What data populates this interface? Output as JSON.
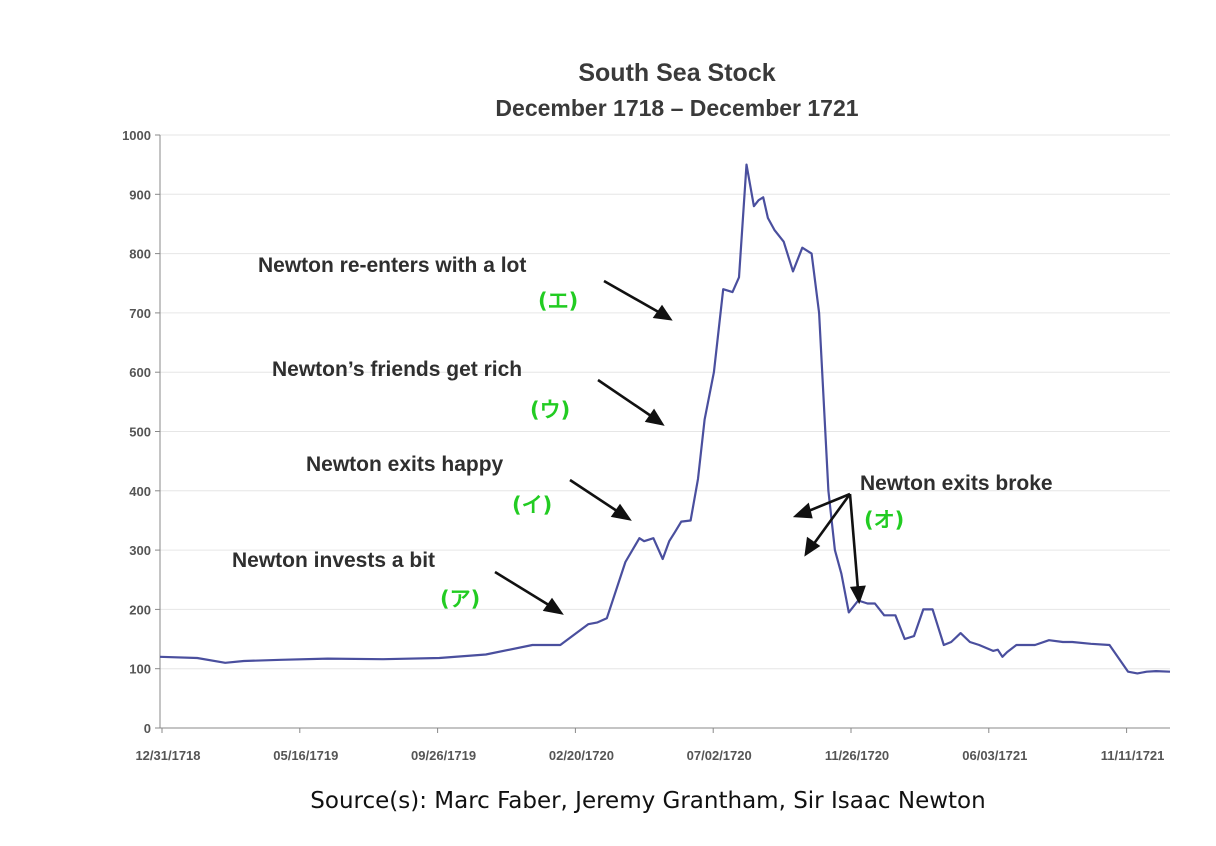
{
  "chart_data": {
    "type": "line",
    "title": "South Sea Stock",
    "subtitle": "December 1718 – December 1721",
    "xlabel": "",
    "ylabel": "",
    "ylim": [
      0,
      1000
    ],
    "y_ticks": [
      0,
      100,
      200,
      300,
      400,
      500,
      600,
      700,
      800,
      900,
      1000
    ],
    "x_ticks": [
      "12/31/1718",
      "05/16/1719",
      "09/26/1719",
      "02/20/1720",
      "07/02/1720",
      "11/26/1720",
      "06/03/1721",
      "11/11/1721"
    ],
    "x_range": [
      0,
      1085
    ],
    "series": [
      {
        "name": "South Sea Stock",
        "x": [
          0,
          40,
          70,
          90,
          130,
          180,
          240,
          300,
          350,
          400,
          430,
          460,
          470,
          480,
          500,
          515,
          520,
          530,
          540,
          547,
          553,
          560,
          570,
          578,
          585,
          595,
          605,
          615,
          622,
          630,
          638,
          643,
          648,
          653,
          660,
          670,
          680,
          690,
          700,
          708,
          718,
          725,
          732,
          740,
          750,
          760,
          768,
          778,
          790,
          800,
          810,
          820,
          830,
          842,
          850,
          860,
          870,
          880,
          895,
          900,
          905,
          910,
          920,
          940,
          955,
          970,
          980,
          1000,
          1020,
          1040,
          1050,
          1060,
          1070,
          1085
        ],
        "values": [
          120,
          118,
          110,
          113,
          115,
          117,
          116,
          118,
          124,
          140,
          140,
          175,
          178,
          185,
          280,
          320,
          315,
          320,
          285,
          315,
          330,
          348,
          350,
          420,
          520,
          600,
          740,
          735,
          760,
          950,
          880,
          890,
          895,
          860,
          840,
          820,
          770,
          810,
          800,
          700,
          400,
          300,
          260,
          195,
          215,
          210,
          210,
          190,
          190,
          150,
          155,
          200,
          200,
          140,
          145,
          160,
          145,
          140,
          130,
          132,
          120,
          128,
          140,
          140,
          148,
          145,
          145,
          142,
          140,
          95,
          92,
          95,
          96,
          95
        ]
      }
    ],
    "annotations": [
      {
        "text": "Newton invests a bit",
        "tag": "(ア)",
        "x": 455,
        "y": 180
      },
      {
        "text": "Newton exits happy",
        "tag": "(イ)",
        "x": 530,
        "y": 345
      },
      {
        "text": "Newton’s friends get rich",
        "tag": "(ウ)",
        "x": 578,
        "y": 520
      },
      {
        "text": "Newton re-enters with a lot",
        "tag": "(エ)",
        "x": 590,
        "y": 720
      },
      {
        "text": "Newton exits broke",
        "tag": "(オ)",
        "x": 740,
        "y": 290
      }
    ],
    "tag_color": "#22cc22",
    "line_color": "#4a4f9e"
  },
  "source": "Source(s): Marc Faber, Jeremy Grantham, Sir Isaac Newton"
}
